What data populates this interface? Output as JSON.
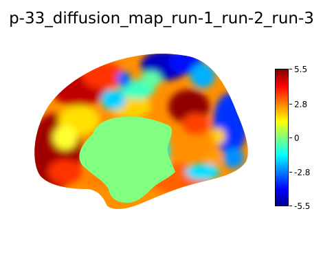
{
  "figure": {
    "title": "p-33_diffusion_map_run-1_run-2_run-3",
    "colormap_name": "jet",
    "colorbar": {
      "min": -5.5,
      "max": 5.5,
      "ticks": [
        {
          "value": 5.5,
          "label": "5.5"
        },
        {
          "value": 2.8,
          "label": "2.8"
        },
        {
          "value": 0,
          "label": "0"
        },
        {
          "value": -2.8,
          "label": "-2.8"
        },
        {
          "value": -5.5,
          "label": "-5.5"
        }
      ]
    },
    "medial_wall_color": "#80ff80"
  }
}
